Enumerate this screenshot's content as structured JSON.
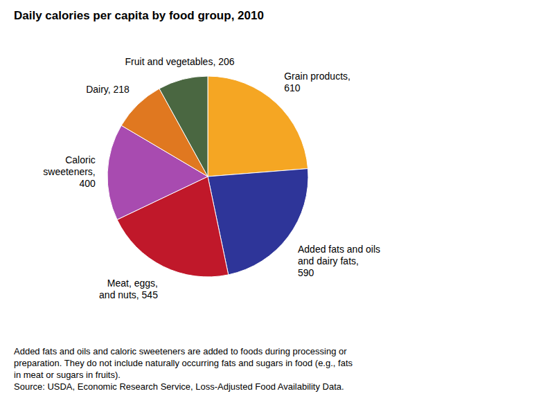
{
  "chart_data": {
    "type": "pie",
    "title": "Daily calories per capita by food group, 2010",
    "categories": [
      "Grain products,\n610",
      "Added fats and oils\nand dairy fats,\n590",
      "Meat, eggs,\nand nuts, 545",
      "Caloric\nsweeteners,\n400",
      "Dairy, 218",
      "Fruit and vegetables, 206"
    ],
    "values": [
      610,
      590,
      545,
      400,
      218,
      206
    ],
    "colors": [
      "#F5A623",
      "#2E3599",
      "#C0182A",
      "#A84BB0",
      "#E07820",
      "#4A6741"
    ],
    "annotations": [
      "Added fats and oils and caloric sweeteners are added to foods during processing or\npreparation. They do not include naturally occurring fats and sugars in food (e.g., fats\nin meat or sugars in fruits).\nSource: USDA, Economic Research Service, Loss-Adjusted Food Availability Data."
    ]
  }
}
